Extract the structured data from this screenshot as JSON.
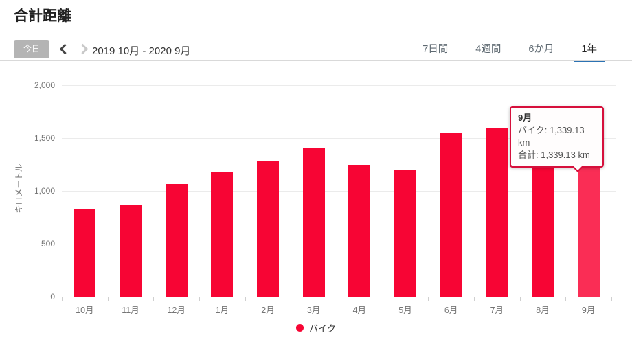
{
  "page": {
    "title": "合計距離"
  },
  "toolbar": {
    "today_label": "今日",
    "date_range": "2019 10月 - 2020 9月",
    "prev_icon": "chevron-left",
    "next_icon": "chevron-right",
    "next_disabled": true
  },
  "tabs": [
    {
      "label": "7日間",
      "active": false
    },
    {
      "label": "4週間",
      "active": false
    },
    {
      "label": "6か月",
      "active": false
    },
    {
      "label": "1年",
      "active": true
    }
  ],
  "tooltip": {
    "title": "9月",
    "line1": "バイク: 1,339.13 km",
    "line2": "合計: 1,339.13 km"
  },
  "legend": {
    "label": "バイク",
    "dot_icon": "circle-icon"
  },
  "colors": {
    "bar": "#f70534",
    "bar_highlighted": "#fa2d55",
    "active_tab_underline": "#2b72b3",
    "tooltip_border": "#d6103c",
    "today_button_bg": "#b4b4b4"
  },
  "chart_data": {
    "type": "bar",
    "title": "合計距離",
    "xlabel": "",
    "ylabel": "キロメートル",
    "categories": [
      "10月",
      "11月",
      "12月",
      "1月",
      "2月",
      "3月",
      "4月",
      "5月",
      "6月",
      "7月",
      "8月",
      "9月"
    ],
    "series": [
      {
        "name": "バイク",
        "values": [
          830,
          868,
          1065,
          1180,
          1285,
          1400,
          1243,
          1197,
          1553,
          1588,
          1227,
          1339.13
        ]
      }
    ],
    "highlighted_index": 11,
    "highlighted_value_exact": "1,339.13 km",
    "ylim": [
      0,
      2000
    ],
    "yticks": [
      0,
      500,
      1000,
      1500,
      2000
    ],
    "ytick_labels": [
      "0",
      "500",
      "1,000",
      "1,500",
      "2,000"
    ],
    "grid": true,
    "legend_position": "bottom"
  }
}
